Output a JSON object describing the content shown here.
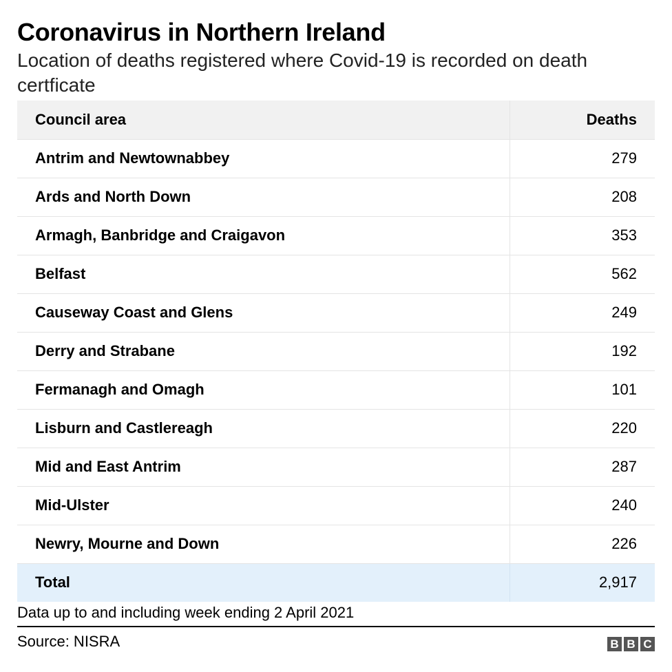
{
  "header": {
    "title": "Coronavirus in Northern Ireland",
    "subtitle": "Location of deaths registered where Covid-19 is recorded on death certficate"
  },
  "chart_data": {
    "type": "table",
    "columns": [
      "Council area",
      "Deaths"
    ],
    "rows": [
      {
        "area": "Antrim and Newtownabbey",
        "deaths": "279"
      },
      {
        "area": "Ards and North Down",
        "deaths": "208"
      },
      {
        "area": "Armagh, Banbridge and Craigavon",
        "deaths": "353"
      },
      {
        "area": "Belfast",
        "deaths": "562"
      },
      {
        "area": "Causeway Coast and Glens",
        "deaths": "249"
      },
      {
        "area": "Derry and Strabane",
        "deaths": "192"
      },
      {
        "area": "Fermanagh and Omagh",
        "deaths": "101"
      },
      {
        "area": "Lisburn and Castlereagh",
        "deaths": "220"
      },
      {
        "area": "Mid and East Antrim",
        "deaths": "287"
      },
      {
        "area": "Mid-Ulster",
        "deaths": "240"
      },
      {
        "area": "Newry, Mourne and Down",
        "deaths": "226"
      }
    ],
    "total": {
      "label": "Total",
      "deaths": "2,917"
    }
  },
  "footer": {
    "note": "Data up to and including week ending 2 April 2021",
    "source": "Source: NISRA",
    "logo_letters": [
      "B",
      "B",
      "C"
    ]
  }
}
